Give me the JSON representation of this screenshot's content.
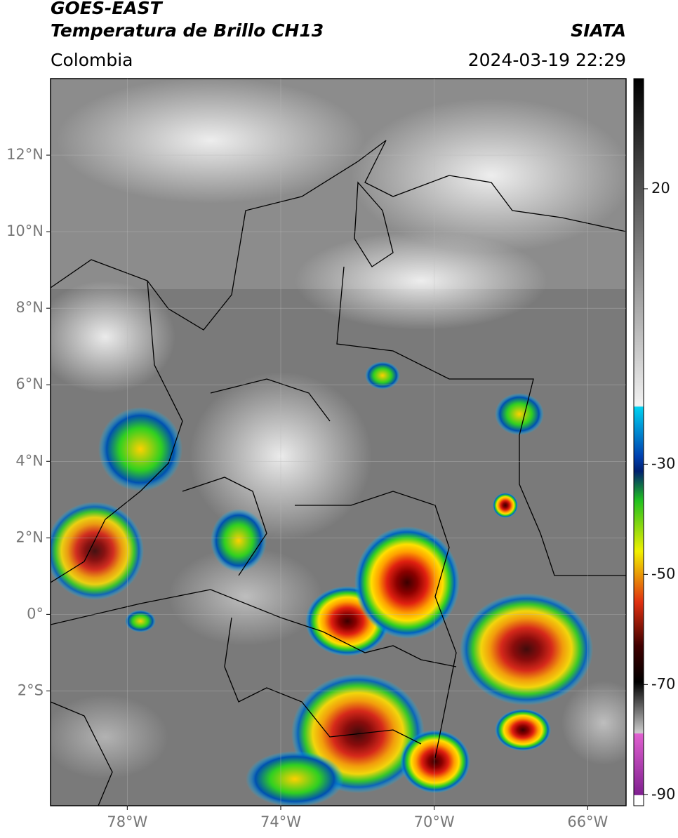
{
  "header": {
    "title": "GOES-EAST",
    "subtitle": "Temperatura de Brillo CH13",
    "source": "SIATA",
    "region": "Colombia",
    "datetime": "2024-03-19 22:29"
  },
  "map": {
    "xlim": [
      -80,
      -65
    ],
    "ylim": [
      -5,
      14
    ],
    "xticks": [
      {
        "value": -78,
        "label": "78°W"
      },
      {
        "value": -74,
        "label": "74°W"
      },
      {
        "value": -70,
        "label": "70°W"
      },
      {
        "value": -66,
        "label": "66°W"
      }
    ],
    "yticks": [
      {
        "value": 12,
        "label": "12°N"
      },
      {
        "value": 10,
        "label": "10°N"
      },
      {
        "value": 8,
        "label": "8°N"
      },
      {
        "value": 6,
        "label": "6°N"
      },
      {
        "value": 4,
        "label": "4°N"
      },
      {
        "value": 2,
        "label": "2°N"
      },
      {
        "value": 0,
        "label": "0°"
      },
      {
        "value": -2,
        "label": "2°S"
      }
    ],
    "grid": true
  },
  "colorbar": {
    "lim": [
      -92,
      40
    ],
    "ticks": [
      20,
      -30,
      -50,
      -70,
      -90
    ]
  }
}
